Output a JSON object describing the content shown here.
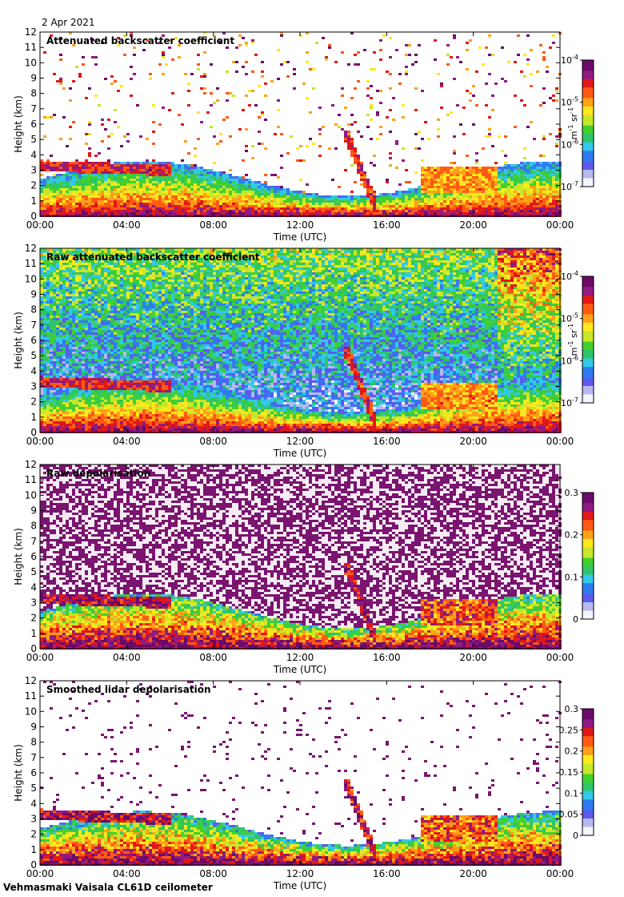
{
  "date": "2 Apr 2021",
  "footer": "Vehmasmaki Vaisala CL61D ceilometer",
  "chart_data": [
    {
      "type": "heatmap",
      "title": "Attenuated backscatter coefficient",
      "xlabel": "Time (UTC)",
      "ylabel": "Height (km)",
      "xticks": [
        "00:00",
        "04:00",
        "08:00",
        "12:00",
        "16:00",
        "20:00",
        "00:00"
      ],
      "yticks": [
        "0",
        "1",
        "2",
        "3",
        "4",
        "5",
        "6",
        "7",
        "8",
        "9",
        "10",
        "11",
        "12"
      ],
      "ylim": [
        0,
        12
      ],
      "colorbar": {
        "scale": "log",
        "range": [
          1e-07,
          0.0001
        ],
        "ticks": [
          {
            "base": "10",
            "exp": "-7"
          },
          {
            "base": "10",
            "exp": "-6"
          },
          {
            "base": "10",
            "exp": "-5"
          },
          {
            "base": "10",
            "exp": "-4"
          }
        ],
        "unit_parts": [
          "m",
          "-1",
          " sr",
          "-1"
        ]
      },
      "field": "attenuated backscatter"
    },
    {
      "type": "heatmap",
      "title": "Raw attenuated backscatter coefficient",
      "xlabel": "Time (UTC)",
      "ylabel": "Height (km)",
      "xticks": [
        "00:00",
        "04:00",
        "08:00",
        "12:00",
        "16:00",
        "20:00",
        "00:00"
      ],
      "yticks": [
        "0",
        "1",
        "2",
        "3",
        "4",
        "5",
        "6",
        "7",
        "8",
        "9",
        "10",
        "11",
        "12"
      ],
      "ylim": [
        0,
        12
      ],
      "colorbar": {
        "scale": "log",
        "range": [
          1e-07,
          0.0001
        ],
        "ticks": [
          {
            "base": "10",
            "exp": "-7"
          },
          {
            "base": "10",
            "exp": "-6"
          },
          {
            "base": "10",
            "exp": "-5"
          },
          {
            "base": "10",
            "exp": "-4"
          }
        ],
        "unit_parts": [
          "m",
          "-1",
          " sr",
          "-1"
        ]
      },
      "field": "raw attenuated backscatter"
    },
    {
      "type": "heatmap",
      "title": "Raw depolarisation",
      "xlabel": "Time (UTC)",
      "ylabel": "Height (km)",
      "xticks": [
        "00:00",
        "04:00",
        "08:00",
        "12:00",
        "16:00",
        "20:00",
        "00:00"
      ],
      "yticks": [
        "0",
        "1",
        "2",
        "3",
        "4",
        "5",
        "6",
        "7",
        "8",
        "9",
        "10",
        "11",
        "12"
      ],
      "ylim": [
        0,
        12
      ],
      "colorbar": {
        "scale": "linear",
        "range": [
          0,
          0.3
        ],
        "ticks": [
          {
            "base": "0"
          },
          {
            "base": "0.1"
          },
          {
            "base": "0.2"
          },
          {
            "base": "0.3"
          }
        ]
      },
      "field": "raw depolarisation"
    },
    {
      "type": "heatmap",
      "title": "Smoothed lidar depolarisation",
      "xlabel": "Time (UTC)",
      "ylabel": "Height (km)",
      "xticks": [
        "00:00",
        "04:00",
        "08:00",
        "12:00",
        "16:00",
        "20:00",
        "00:00"
      ],
      "yticks": [
        "0",
        "1",
        "2",
        "3",
        "4",
        "5",
        "6",
        "7",
        "8",
        "9",
        "10",
        "11",
        "12"
      ],
      "ylim": [
        0,
        12
      ],
      "colorbar": {
        "scale": "linear",
        "range": [
          0,
          0.3
        ],
        "ticks": [
          {
            "base": "0"
          },
          {
            "base": "0.05"
          },
          {
            "base": "0.1"
          },
          {
            "base": "0.15"
          },
          {
            "base": "0.2"
          },
          {
            "base": "0.25"
          },
          {
            "base": "0.3"
          }
        ]
      },
      "field": "smoothed depolarisation"
    }
  ],
  "colormap": [
    "#f4f4ff",
    "#b8b8f0",
    "#5a5aee",
    "#2f7cf0",
    "#33c8e8",
    "#2ec46a",
    "#42d02e",
    "#c8e62a",
    "#ffe81c",
    "#ffa018",
    "#ff5a14",
    "#e01818",
    "#8e1a82",
    "#6a0a6a"
  ]
}
